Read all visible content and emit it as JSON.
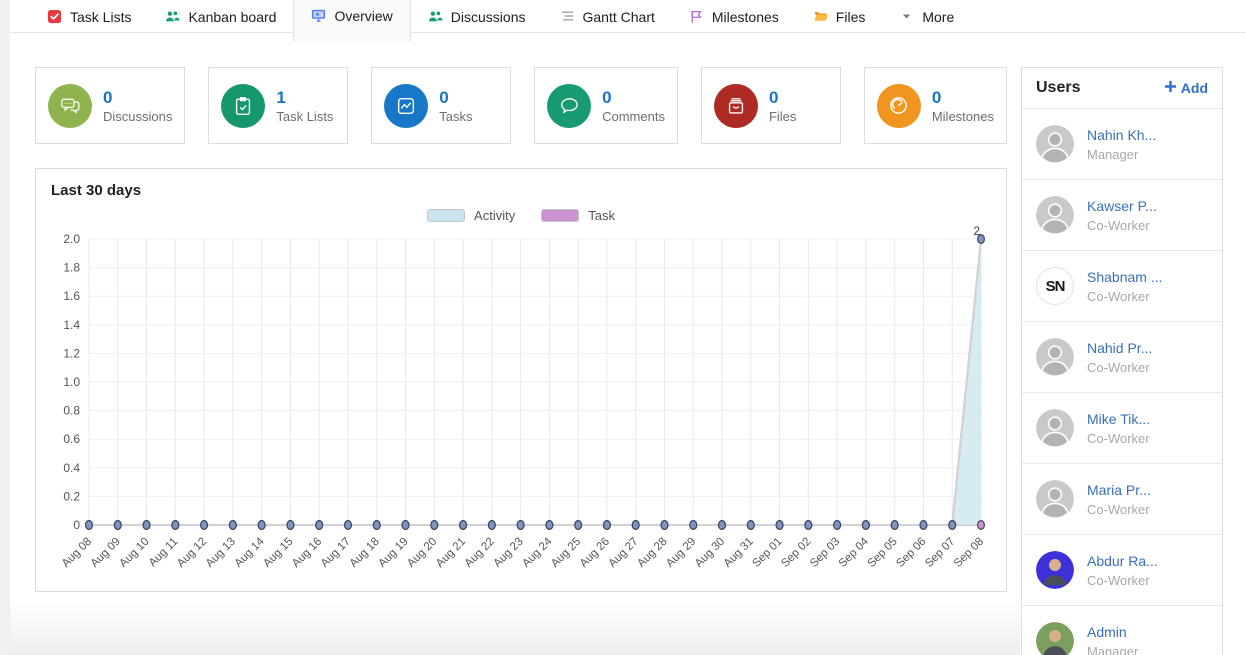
{
  "tabs": [
    {
      "label": "Task Lists",
      "icon": "task-lists-icon",
      "active": false
    },
    {
      "label": "Kanban board",
      "icon": "kanban-icon",
      "active": false
    },
    {
      "label": "Overview",
      "icon": "overview-icon",
      "active": true
    },
    {
      "label": "Discussions",
      "icon": "discussions-icon",
      "active": false
    },
    {
      "label": "Gantt Chart",
      "icon": "gantt-icon",
      "active": false
    },
    {
      "label": "Milestones",
      "icon": "milestones-icon",
      "active": false
    },
    {
      "label": "Files",
      "icon": "files-icon",
      "active": false
    },
    {
      "label": "More",
      "icon": "chevron-down-icon",
      "active": false
    }
  ],
  "accent": {
    "count_color": "#1a73c8",
    "link_color": "#3a70b8",
    "add_color": "#2e6fd1"
  },
  "stats": [
    {
      "label": "Discussions",
      "count": "0",
      "icon": "chat-bubbles-icon",
      "color": "#8fb34d"
    },
    {
      "label": "Task Lists",
      "count": "1",
      "icon": "clipboard-check-icon",
      "color": "#17976e"
    },
    {
      "label": "Tasks",
      "count": "0",
      "icon": "chart-box-icon",
      "color": "#1878c8"
    },
    {
      "label": "Comments",
      "count": "0",
      "icon": "comment-icon",
      "color": "#189a73"
    },
    {
      "label": "Files",
      "count": "0",
      "icon": "archive-icon",
      "color": "#ae2a24"
    },
    {
      "label": "Milestones",
      "count": "0",
      "icon": "gauge-icon",
      "color": "#f0951f"
    }
  ],
  "chart": {
    "title": "Last 30 days",
    "legend": [
      {
        "label": "Activity",
        "color": "#c9e4ef"
      },
      {
        "label": "Task",
        "color": "#ca92cf"
      }
    ],
    "chart_data": {
      "type": "area",
      "title": "Last 30 days",
      "x": [
        "Aug 08",
        "Aug 09",
        "Aug 10",
        "Aug 11",
        "Aug 12",
        "Aug 13",
        "Aug 14",
        "Aug 15",
        "Aug 16",
        "Aug 17",
        "Aug 18",
        "Aug 19",
        "Aug 20",
        "Aug 21",
        "Aug 22",
        "Aug 23",
        "Aug 24",
        "Aug 25",
        "Aug 26",
        "Aug 27",
        "Aug 28",
        "Aug 29",
        "Aug 30",
        "Aug 31",
        "Sep 01",
        "Sep 02",
        "Sep 03",
        "Sep 04",
        "Sep 05",
        "Sep 06",
        "Sep 07",
        "Sep 08"
      ],
      "series": [
        {
          "name": "Activity",
          "values": [
            0,
            0,
            0,
            0,
            0,
            0,
            0,
            0,
            0,
            0,
            0,
            0,
            0,
            0,
            0,
            0,
            0,
            0,
            0,
            0,
            0,
            0,
            0,
            0,
            0,
            0,
            0,
            0,
            0,
            0,
            0,
            2
          ],
          "fill": "#c9e4ef",
          "line": "#d2d2d2",
          "marker_fill": "#8094be",
          "marker_stroke": "#3f4565"
        },
        {
          "name": "Task",
          "values": [
            0,
            0,
            0,
            0,
            0,
            0,
            0,
            0,
            0,
            0,
            0,
            0,
            0,
            0,
            0,
            0,
            0,
            0,
            0,
            0,
            0,
            0,
            0,
            0,
            0,
            0,
            0,
            0,
            0,
            0,
            0,
            0
          ],
          "fill": "#ca92cf",
          "line": "#d2d2d2",
          "marker_fill": "#ca92cf",
          "marker_stroke": "#3f4565"
        }
      ],
      "ylim": [
        0,
        2
      ],
      "ytick_step": 0.2,
      "grid": true,
      "legend_position": "top-center",
      "annotations": [
        {
          "x": "Sep 08",
          "y": 2,
          "text": "2"
        }
      ]
    }
  },
  "users_panel": {
    "title": "Users",
    "add_label": "Add",
    "users": [
      {
        "name": "Nahin Kh...",
        "role": "Manager",
        "avatar_type": "silhouette"
      },
      {
        "name": "Kawser P...",
        "role": "Co-Worker",
        "avatar_type": "silhouette"
      },
      {
        "name": "Shabnam ...",
        "role": "Co-Worker",
        "avatar_type": "initials",
        "avatar_text": "SN"
      },
      {
        "name": "Nahid Pr...",
        "role": "Co-Worker",
        "avatar_type": "silhouette"
      },
      {
        "name": "Mike Tik...",
        "role": "Co-Worker",
        "avatar_type": "silhouette"
      },
      {
        "name": "Maria Pr...",
        "role": "Co-Worker",
        "avatar_type": "silhouette"
      },
      {
        "name": "Abdur Ra...",
        "role": "Co-Worker",
        "avatar_type": "photo",
        "avatar_color": "#3c31d8"
      },
      {
        "name": "Admin",
        "role": "Manager",
        "avatar_type": "photo",
        "avatar_color": "#7ba05d"
      }
    ]
  }
}
